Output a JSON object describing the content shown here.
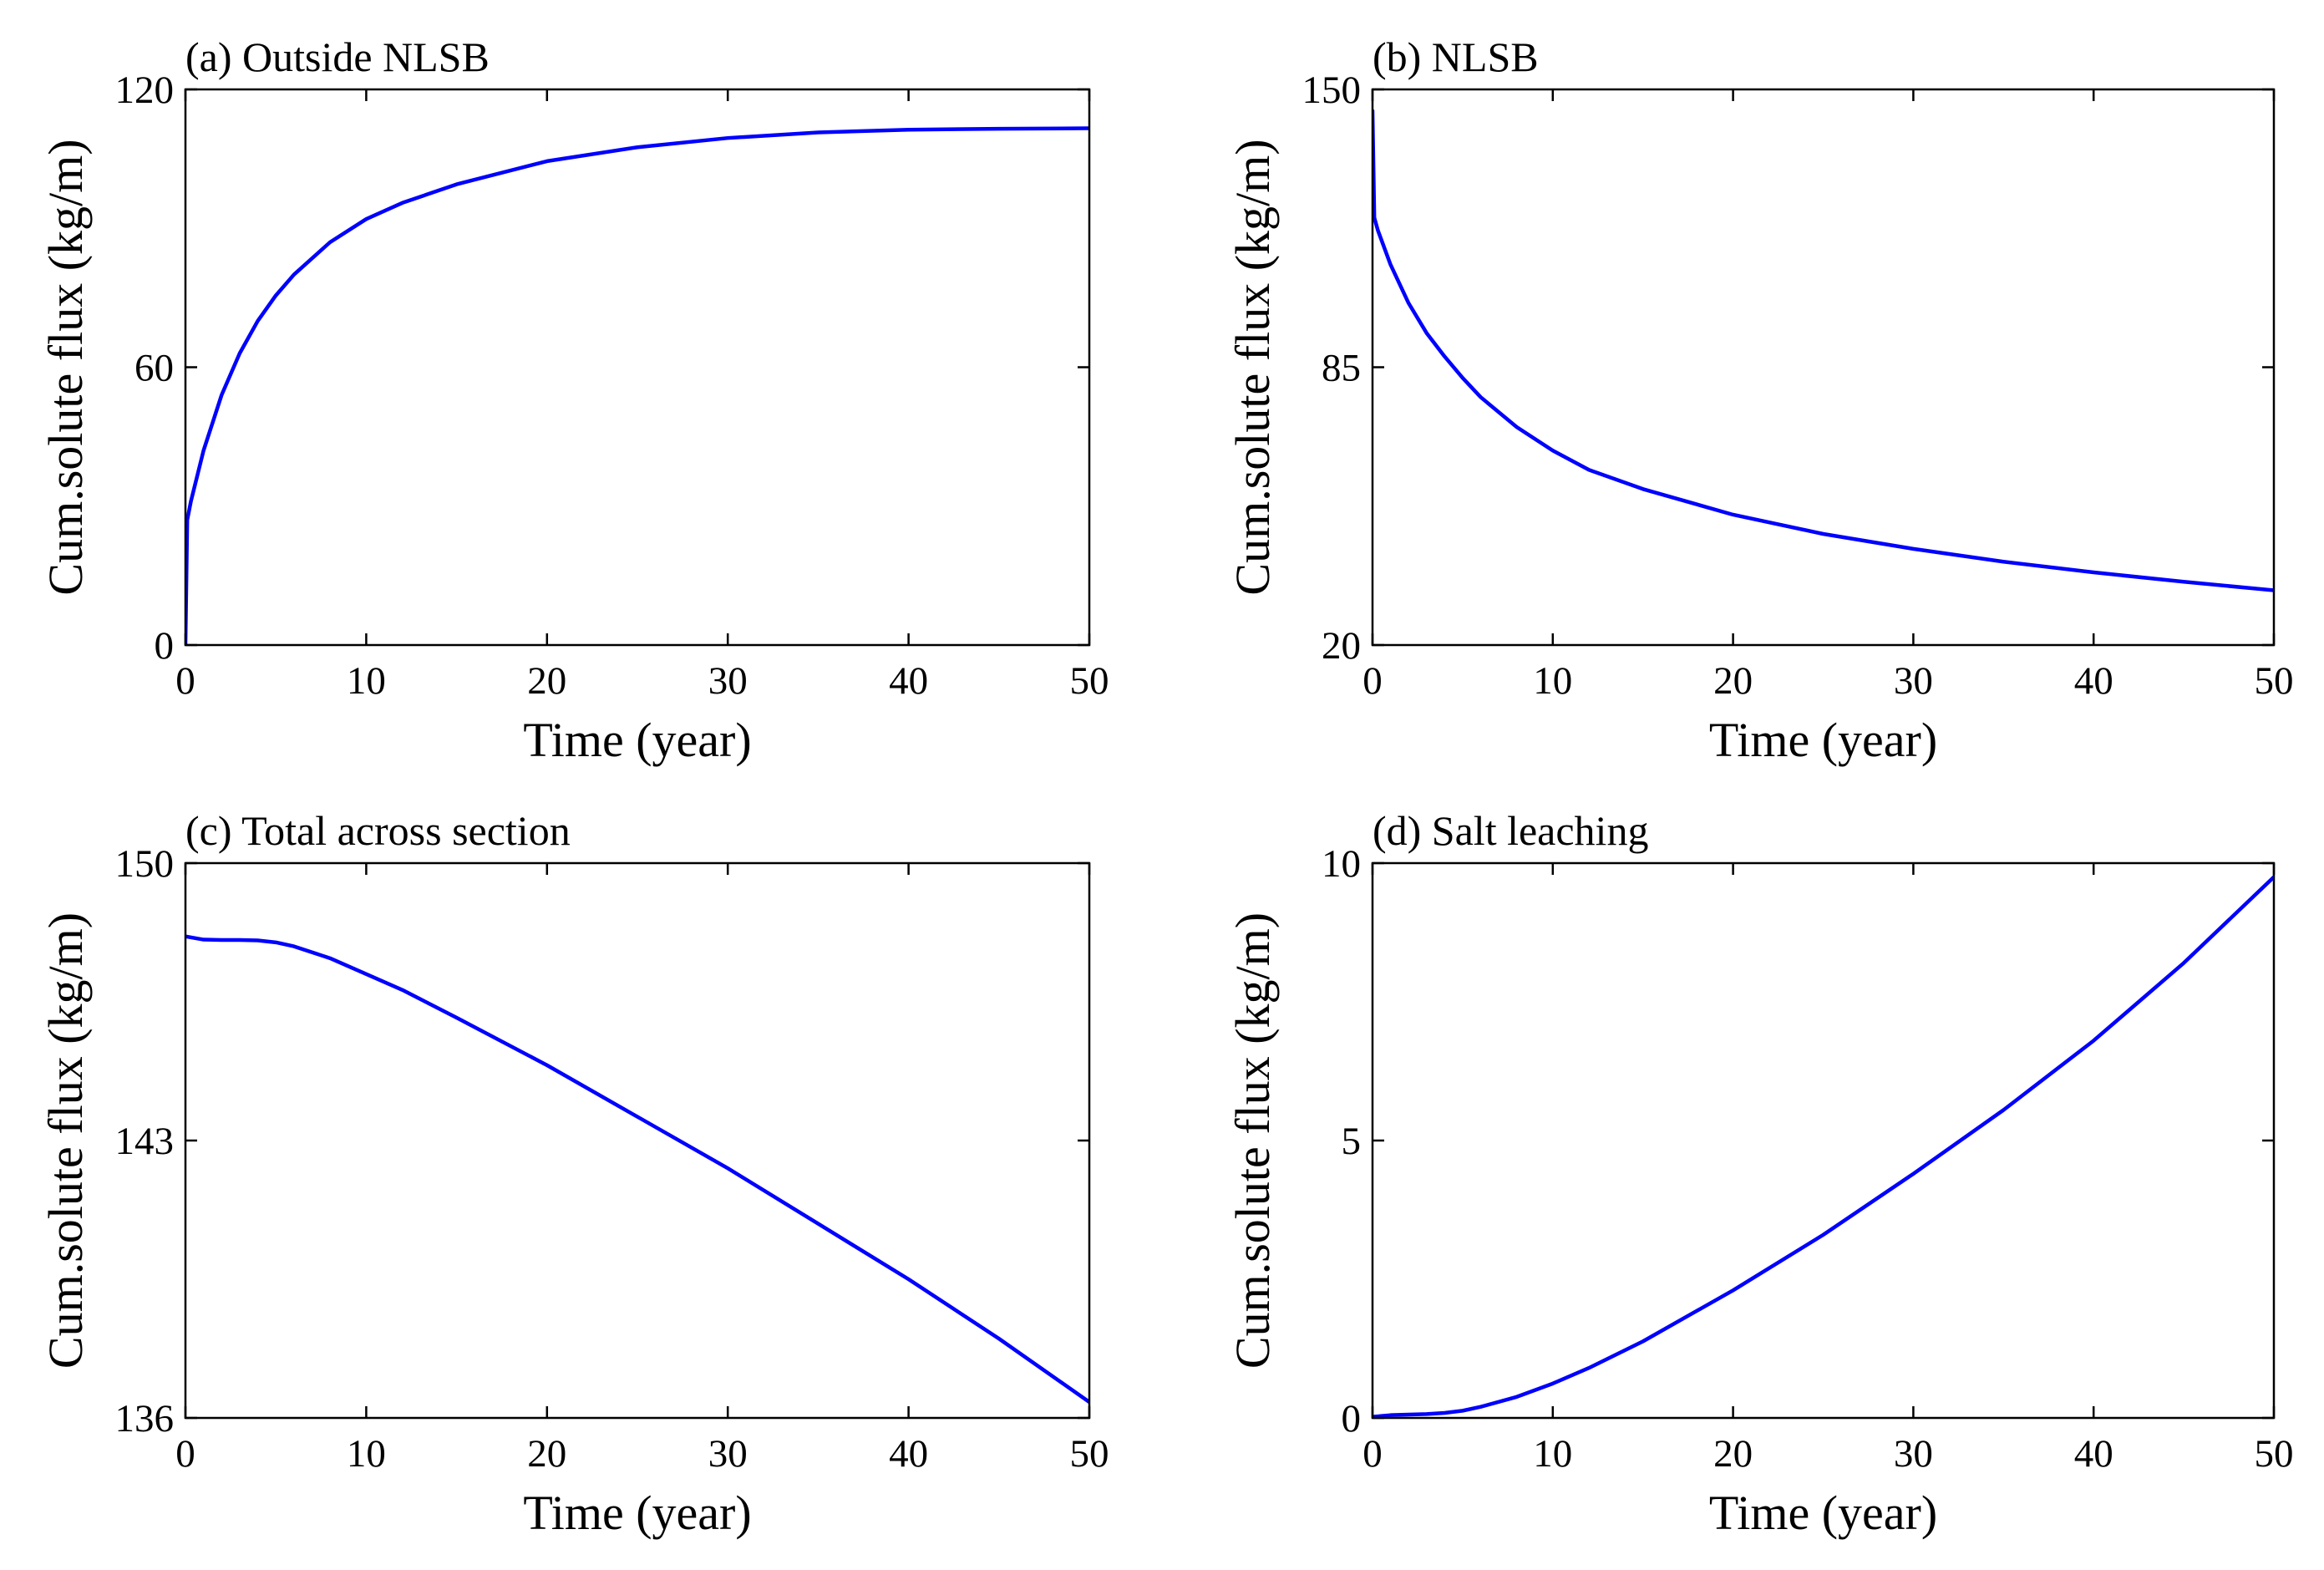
{
  "figure": {
    "line_color": "#0000ff",
    "axis_color": "#000000",
    "background": "#ffffff"
  },
  "chart_data": [
    {
      "type": "line",
      "title": "(a) Outside NLSB",
      "xlabel": "Time (year)",
      "ylabel": "Cum.solute flux (kg/m)",
      "xlim": [
        0,
        50
      ],
      "ylim": [
        0,
        120
      ],
      "xticks": [
        0,
        10,
        20,
        30,
        40,
        50
      ],
      "xtick_labels": [
        "0",
        "10",
        "20",
        "30",
        "40",
        "50"
      ],
      "yticks": [
        0,
        60,
        120
      ],
      "ytick_labels": [
        "0",
        "60",
        "120"
      ],
      "grid": false,
      "series": [
        {
          "name": "Outside NLSB",
          "x": [
            0,
            0.1,
            0.3,
            1,
            2,
            3,
            4,
            5,
            6,
            8,
            10,
            12,
            15,
            20,
            25,
            30,
            35,
            40,
            45,
            50
          ],
          "y": [
            0,
            27,
            31,
            42,
            54,
            63,
            70,
            75.5,
            80,
            87,
            92,
            95.5,
            99.5,
            104.5,
            107.5,
            109.5,
            110.7,
            111.3,
            111.5,
            111.6
          ]
        }
      ]
    },
    {
      "type": "line",
      "title": "(b) NLSB",
      "xlabel": "Time (year)",
      "ylabel": "Cum.solute flux (kg/m)",
      "xlim": [
        0,
        50
      ],
      "ylim": [
        20,
        150
      ],
      "xticks": [
        0,
        10,
        20,
        30,
        40,
        50
      ],
      "xtick_labels": [
        "0",
        "10",
        "20",
        "30",
        "40",
        "50"
      ],
      "yticks": [
        20,
        85,
        150
      ],
      "ytick_labels": [
        "20",
        "85",
        "150"
      ],
      "grid": false,
      "series": [
        {
          "name": "NLSB",
          "x": [
            0,
            0.1,
            0.3,
            1,
            2,
            3,
            4,
            5,
            6,
            8,
            10,
            12,
            15,
            20,
            25,
            30,
            35,
            40,
            45,
            50
          ],
          "y": [
            145,
            120,
            117,
            109,
            100,
            93,
            87.5,
            82.5,
            78,
            71,
            65.5,
            61,
            56.5,
            50.5,
            46,
            42.5,
            39.5,
            37,
            34.8,
            32.8
          ]
        }
      ]
    },
    {
      "type": "line",
      "title": "(c) Total across section",
      "xlabel": "Time (year)",
      "ylabel": "Cum.solute flux (kg/m)",
      "xlim": [
        0,
        50
      ],
      "ylim": [
        136,
        150
      ],
      "xticks": [
        0,
        10,
        20,
        30,
        40,
        50
      ],
      "xtick_labels": [
        "0",
        "10",
        "20",
        "30",
        "40",
        "50"
      ],
      "yticks": [
        136,
        143,
        150
      ],
      "ytick_labels": [
        "136",
        "143",
        "150"
      ],
      "grid": false,
      "series": [
        {
          "name": "Total across section",
          "x": [
            0,
            1,
            2,
            3,
            4,
            5,
            6,
            8,
            10,
            12,
            15,
            20,
            25,
            30,
            35,
            40,
            45,
            50
          ],
          "y": [
            148.15,
            148.07,
            148.06,
            148.06,
            148.05,
            148.0,
            147.9,
            147.6,
            147.2,
            146.8,
            146.1,
            144.9,
            143.6,
            142.3,
            140.9,
            139.5,
            138.0,
            136.4
          ]
        }
      ]
    },
    {
      "type": "line",
      "title": "(d) Salt leaching",
      "xlabel": "Time (year)",
      "ylabel": "Cum.solute flux (kg/m)",
      "xlim": [
        0,
        50
      ],
      "ylim": [
        0,
        10
      ],
      "xticks": [
        0,
        10,
        20,
        30,
        40,
        50
      ],
      "xtick_labels": [
        "0",
        "10",
        "20",
        "30",
        "40",
        "50"
      ],
      "yticks": [
        0,
        5,
        10
      ],
      "ytick_labels": [
        "0",
        "5",
        "10"
      ],
      "grid": false,
      "series": [
        {
          "name": "Salt leaching",
          "x": [
            0,
            1,
            2,
            3,
            4,
            5,
            6,
            8,
            10,
            12,
            15,
            20,
            25,
            30,
            35,
            40,
            45,
            50
          ],
          "y": [
            0.02,
            0.05,
            0.06,
            0.07,
            0.09,
            0.13,
            0.2,
            0.38,
            0.62,
            0.9,
            1.38,
            2.3,
            3.3,
            4.4,
            5.55,
            6.8,
            8.2,
            9.75
          ]
        }
      ]
    }
  ]
}
